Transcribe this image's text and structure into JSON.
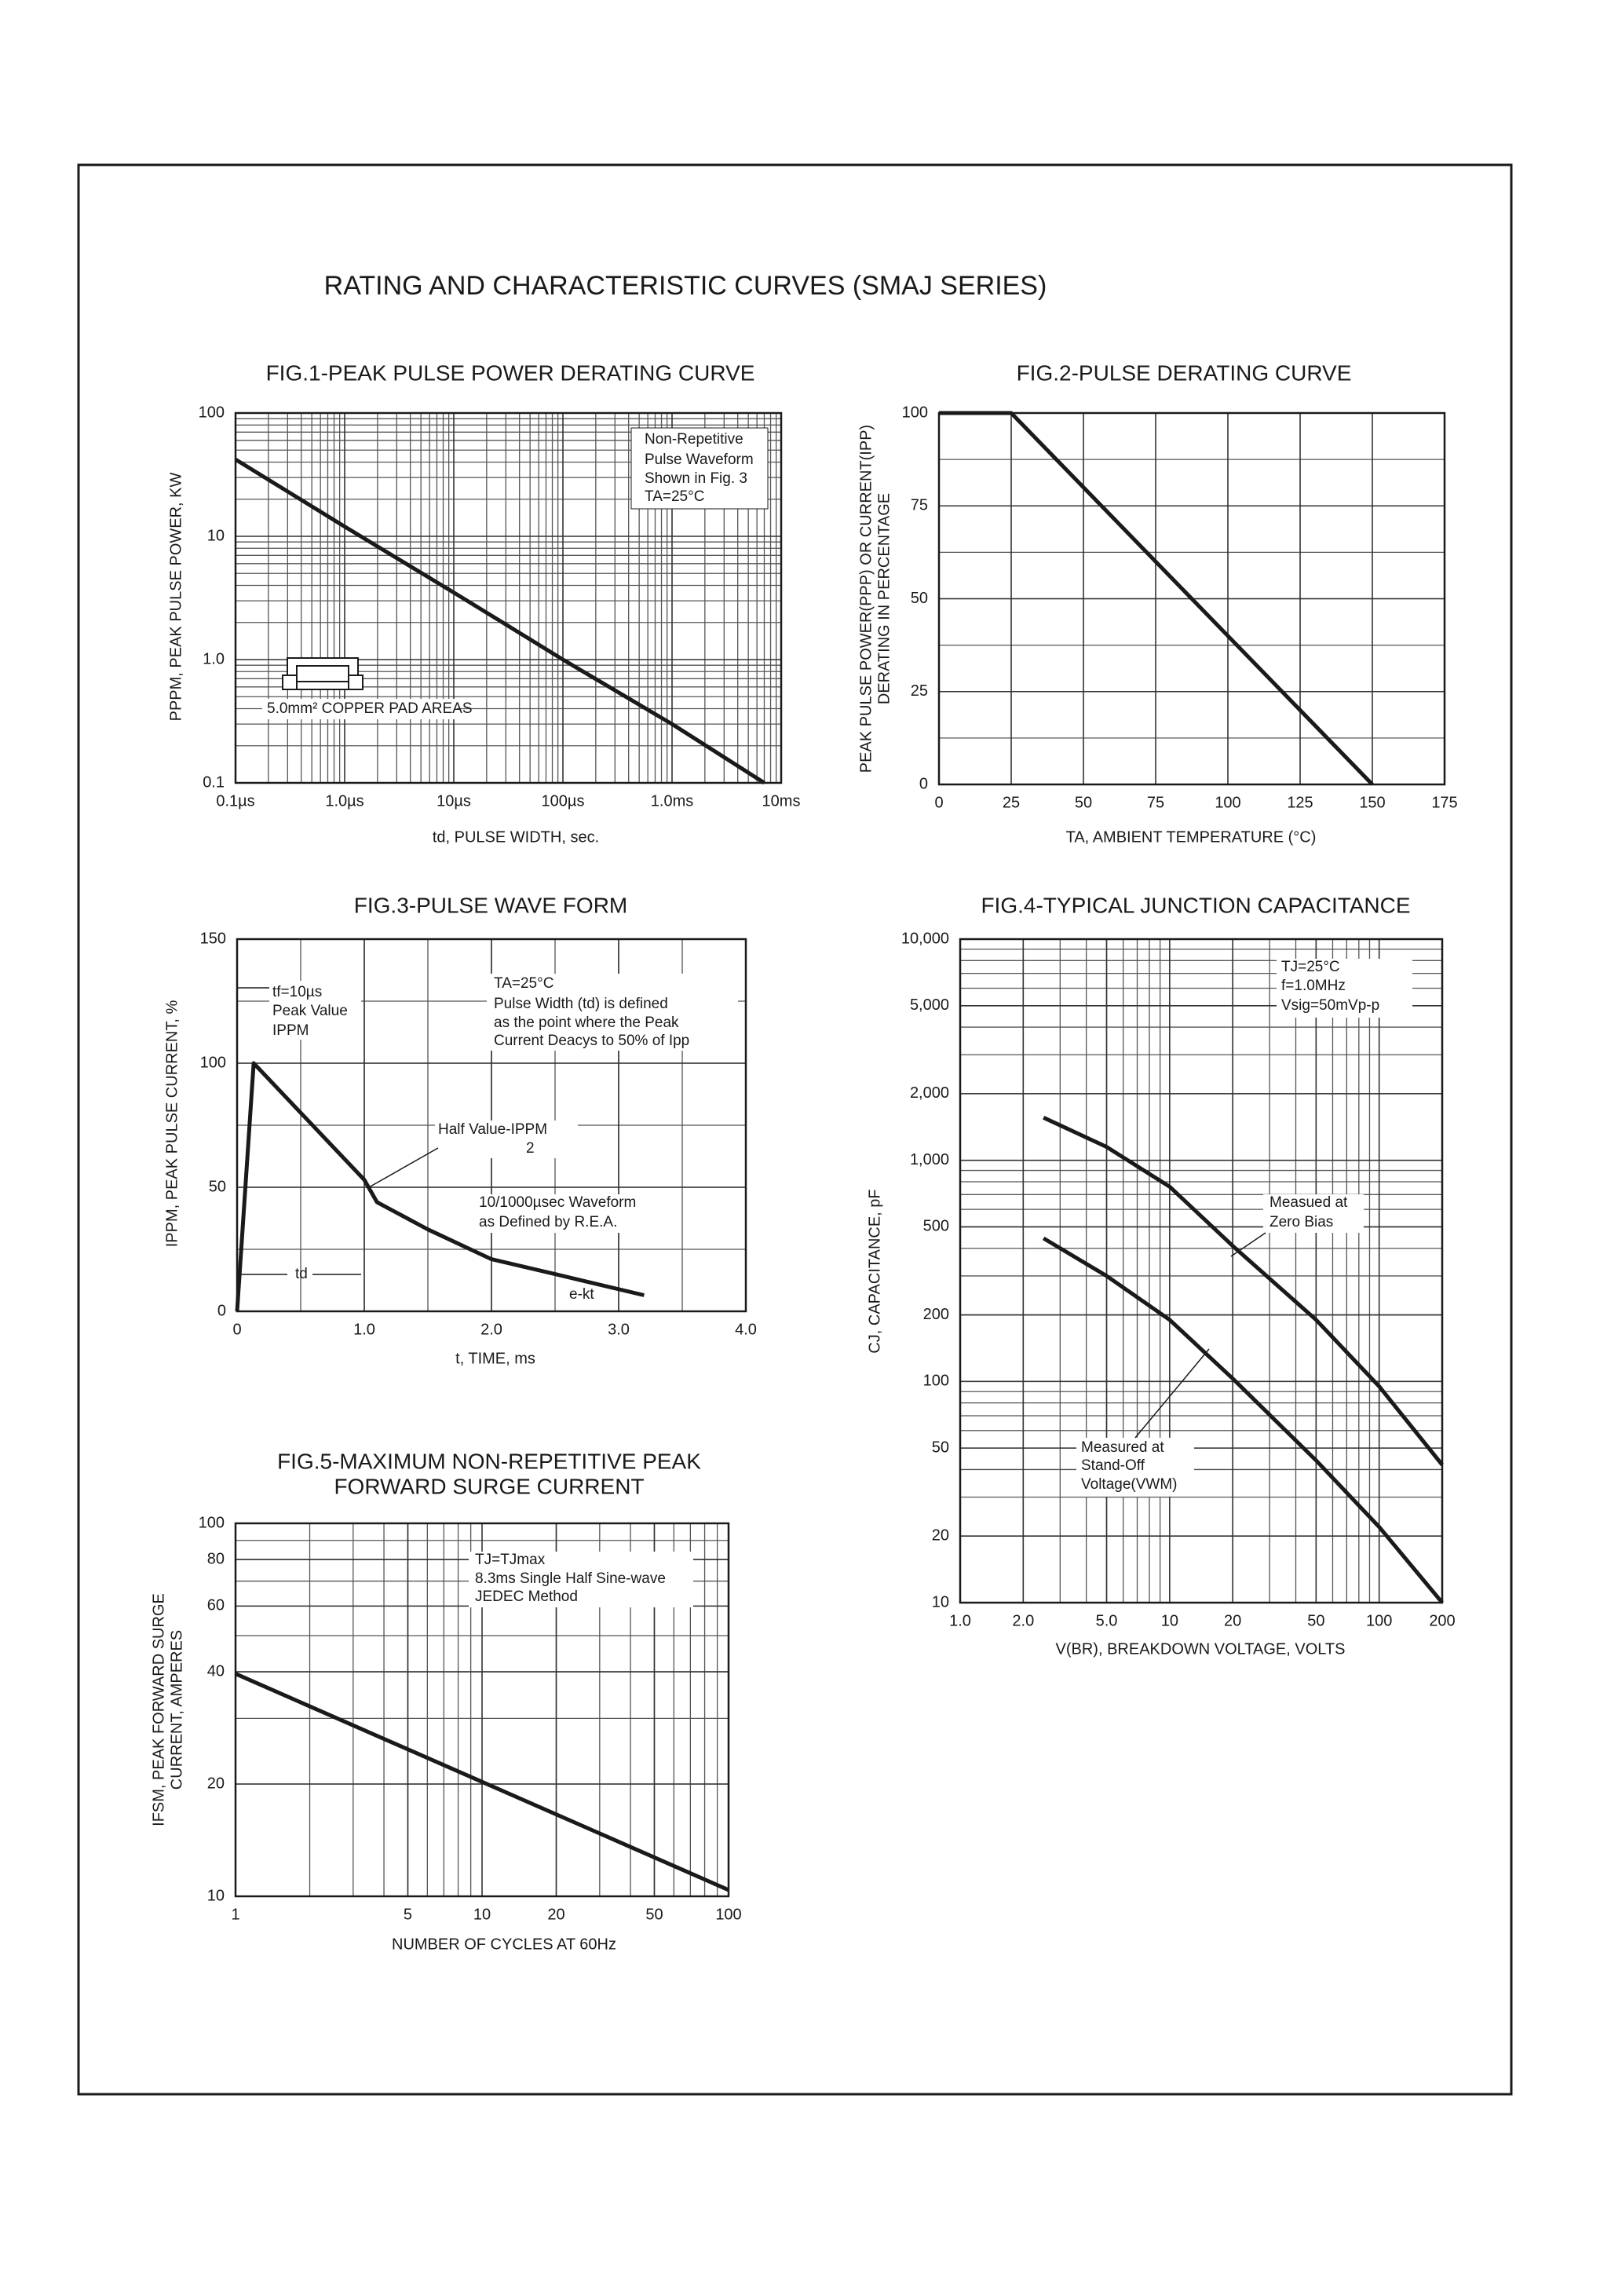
{
  "title": "RATING AND CHARACTERISTIC CURVES (SMAJ SERIES)",
  "chart_data": [
    {
      "type": "line",
      "title": "FIG.1-PEAK PULSE POWER DERATING CURVE",
      "xlabel": "td, PULSE WIDTH, sec.",
      "ylabel": "PPPM, PEAK PULSE POWER, KW",
      "xlog": true,
      "ylog": true,
      "minor_grid": true,
      "color": "#1a1a1a",
      "xlim": [
        0.1,
        10000
      ],
      "ylim": [
        0.1,
        100
      ],
      "xticks": [
        {
          "value": 0.1,
          "label": "0.1µs"
        },
        {
          "value": 1,
          "label": "1.0µs"
        },
        {
          "value": 10,
          "label": "10µs"
        },
        {
          "value": 100,
          "label": "100µs"
        },
        {
          "value": 1000,
          "label": "1.0ms"
        },
        {
          "value": 10000,
          "label": "10ms"
        }
      ],
      "yticks": [
        0.1,
        {
          "value": 1,
          "label": "1.0"
        },
        10,
        100
      ],
      "x": [
        0.1,
        1,
        10,
        100,
        1000,
        7000
      ],
      "values": [
        42,
        12,
        3.5,
        1.0,
        0.3,
        0.1
      ],
      "annotations": [
        "Non-Repetitive",
        "Pulse Waveform",
        "Shown in Fig. 3",
        "TA=25°C",
        "5.0mm² COPPER PAD AREAS"
      ]
    },
    {
      "type": "line",
      "title": "FIG.2-PULSE DERATING CURVE",
      "xlabel": "TA, AMBIENT TEMPERATURE (°C)",
      "ylabel": [
        "PEAK PULSE POWER(PPP) OR CURRENT(IPP)",
        "DERATING IN PERCENTAGE"
      ],
      "xlog": false,
      "ylog": false,
      "y_minor_grid": 12.5,
      "color": "#1a1a1a",
      "xlim": [
        0,
        175
      ],
      "ylim": [
        0,
        100
      ],
      "xticks": [
        0,
        25,
        50,
        75,
        100,
        125,
        150,
        175
      ],
      "yticks": [
        0,
        25,
        50,
        75,
        100
      ],
      "x": [
        0,
        25,
        150
      ],
      "values": [
        100,
        100,
        0
      ],
      "annotations": []
    },
    {
      "type": "line",
      "title": "FIG.3-PULSE WAVE FORM",
      "xlabel": "t, TIME, ms",
      "ylabel": "IPPM, PEAK PULSE CURRENT, %",
      "xlog": false,
      "ylog": false,
      "x_minor_grid": 0.5,
      "y_minor_grid": 25,
      "color": "#1a1a1a",
      "xlim": [
        0,
        4
      ],
      "ylim": [
        0,
        150
      ],
      "xticks": [
        0,
        {
          "value": 1,
          "label": "1.0"
        },
        {
          "value": 2,
          "label": "2.0"
        },
        {
          "value": 3,
          "label": "3.0"
        },
        {
          "value": 4,
          "label": "4.0"
        }
      ],
      "yticks": [
        0,
        50,
        100,
        150
      ],
      "x": [
        0,
        0.13,
        1.0,
        1.1,
        1.5,
        2.0,
        2.5,
        3.2
      ],
      "values": [
        0,
        100,
        53,
        44,
        33,
        21,
        15,
        6.5
      ],
      "annotations": [
        "tf=10µs",
        "Peak Value",
        "IPPM",
        "TA=25°C",
        "Pulse Width (td) is defined",
        "as the point where the Peak",
        "Current Deacys to 50% of Ipp",
        "Half Value-IPPM",
        "2",
        "10/1000µsec Waveform",
        "as Defined by R.E.A.",
        "td",
        "e-kt"
      ]
    },
    {
      "type": "line",
      "title": "FIG.4-TYPICAL JUNCTION CAPACITANCE",
      "xlabel": "V(BR), BREAKDOWN VOLTAGE, VOLTS",
      "ylabel": "CJ, CAPACITANCE, pF",
      "xlog": true,
      "ylog": true,
      "minor_grid": true,
      "xlim": [
        1,
        200
      ],
      "ylim": [
        10,
        10000
      ],
      "xticks": [
        {
          "value": 1,
          "label": "1.0"
        },
        {
          "value": 2,
          "label": "2.0"
        },
        {
          "value": 5,
          "label": "5.0"
        },
        10,
        20,
        50,
        100,
        200
      ],
      "yticks": [
        10,
        20,
        50,
        100,
        200,
        500,
        {
          "value": 1000,
          "label": "1,000"
        },
        {
          "value": 2000,
          "label": "2,000"
        },
        {
          "value": 5000,
          "label": "5,000"
        },
        {
          "value": 10000,
          "label": "10,000"
        }
      ],
      "series": [
        {
          "color": "#1a1a1a",
          "x": [
            2.5,
            5,
            10,
            20,
            50,
            100,
            200
          ],
          "values": [
            1560,
            1150,
            760,
            410,
            190,
            95,
            42
          ]
        },
        {
          "color": "#1a1a1a",
          "x": [
            2.5,
            5,
            10,
            20,
            50,
            100,
            200
          ],
          "values": [
            444,
            300,
            190,
            103,
            44,
            22,
            10
          ]
        }
      ],
      "annotations": [
        "TJ=25°C",
        "f=1.0MHz",
        "Vsig=50mVp-p",
        "Measued at",
        "Zero Bias",
        "Measured at",
        "Stand-Off",
        "Voltage(VWM)"
      ]
    },
    {
      "type": "line",
      "title": [
        "FIG.5-MAXIMUM NON-REPETITIVE PEAK",
        "FORWARD SURGE CURRENT"
      ],
      "xlabel": "NUMBER OF CYCLES AT 60Hz",
      "ylabel": [
        "IFSM, PEAK FORWARD SURGE",
        "CURRENT, AMPERES"
      ],
      "xlog": true,
      "ylog": true,
      "minor_grid": true,
      "color": "#1a1a1a",
      "xlim": [
        1,
        100
      ],
      "ylim": [
        10,
        100
      ],
      "xticks": [
        1,
        5,
        10,
        20,
        50,
        100
      ],
      "yticks": [
        10,
        20,
        40,
        60,
        80,
        100
      ],
      "x": [
        1,
        100
      ],
      "values": [
        39.5,
        10.4
      ],
      "annotations": [
        "TJ=TJmax",
        "8.3ms Single Half Sine-wave",
        "JEDEC Method"
      ]
    }
  ]
}
